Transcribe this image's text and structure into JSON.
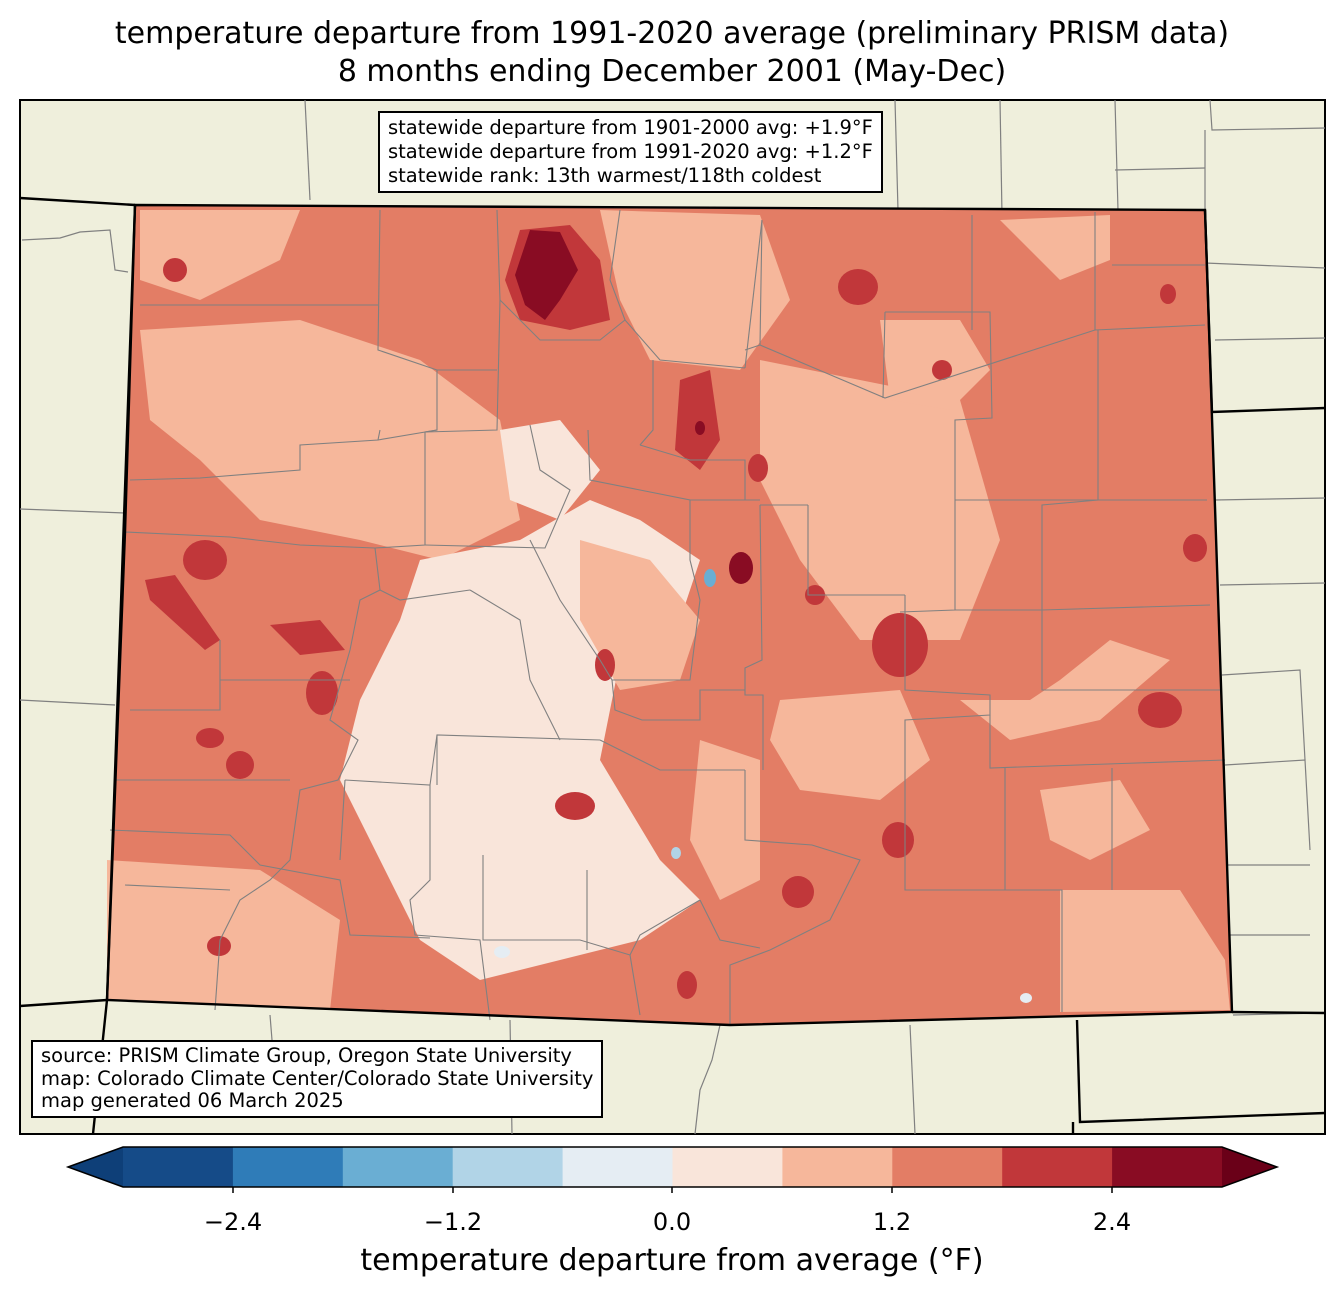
{
  "title": {
    "line1": "temperature departure from 1991-2020 average (preliminary PRISM data)",
    "line2": "8 months ending December 2001 (May-Dec)"
  },
  "stats_box": {
    "line1": "statewide departure from 1901-2000 avg: +1.9°F",
    "line2": "statewide departure from 1991-2020 avg: +1.2°F",
    "line3": "statewide rank: 13th warmest/118th coldest"
  },
  "source_box": {
    "line1": "source: PRISM Climate Group, Oregon State University",
    "line2": "map: Colorado Climate Center/Colorado State University",
    "line3": "map generated 06 March 2025"
  },
  "colorbar": {
    "label": "temperature departure from average (°F)",
    "ticks": [
      "−2.4",
      "−1.2",
      "0.0",
      "1.2",
      "2.4"
    ],
    "bins": [
      -3.0,
      -2.4,
      -1.8,
      -1.2,
      -0.6,
      0.0,
      0.6,
      1.2,
      1.8,
      2.4,
      3.0
    ],
    "colors": [
      "#0e3f78",
      "#154b88",
      "#2f7cb8",
      "#6aaed3",
      "#b1d4e7",
      "#e5edf3",
      "#f9e5da",
      "#f6b79b",
      "#e37d65",
      "#c1373a",
      "#890c23",
      "#6a0018"
    ]
  },
  "map_colors": {
    "background_land": "#efefdc",
    "county_lines": "#808080",
    "state_lines": "#000000"
  }
}
